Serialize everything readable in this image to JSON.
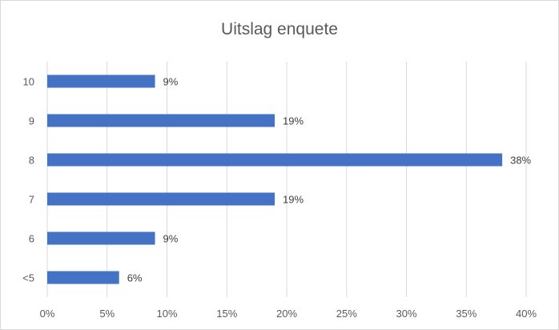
{
  "chart_data": {
    "type": "bar",
    "orientation": "horizontal",
    "title": "Uitslag enquete",
    "xlabel": "",
    "ylabel": "",
    "categories": [
      "10",
      "9",
      "8",
      "7",
      "6",
      "<5"
    ],
    "values": [
      9,
      19,
      38,
      19,
      9,
      6
    ],
    "data_labels": [
      "9%",
      "19%",
      "38%",
      "19%",
      "9%",
      "6%"
    ],
    "xlim": [
      0,
      40
    ],
    "x_ticks": [
      0,
      5,
      10,
      15,
      20,
      25,
      30,
      35,
      40
    ],
    "x_tick_labels": [
      "0%",
      "5%",
      "10%",
      "15%",
      "20%",
      "25%",
      "30%",
      "35%",
      "40%"
    ],
    "grid": "vertical",
    "legend": "none",
    "colors": {
      "bar": "#4472c4",
      "grid": "#d9d9d9",
      "text": "#595959"
    }
  }
}
